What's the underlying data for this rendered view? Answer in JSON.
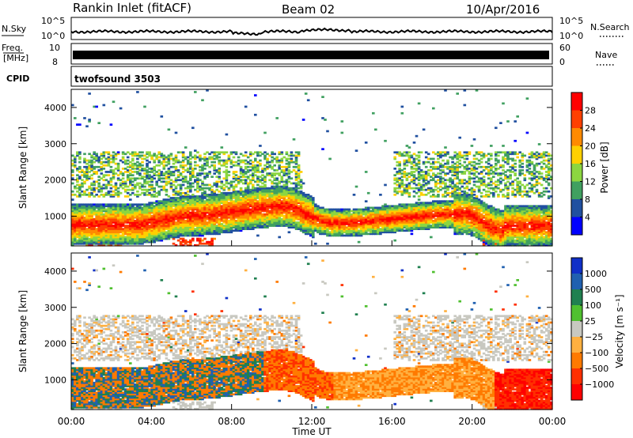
{
  "header": {
    "station": "Rankin Inlet (fitACF)",
    "beam": "Beam 02",
    "date": "10/Apr/2016"
  },
  "top_panels": {
    "nsky_label": "N.Sky",
    "nsky_ticks": [
      "10^5",
      "10^0"
    ],
    "nsearch_label": "N.Search",
    "nsearch_ticks": [
      "10^5",
      "10^0"
    ],
    "freq_label": "Freq.",
    "freq_unit": "[MHz]",
    "freq_ticks": [
      "10",
      "8"
    ],
    "nave_label": "Nave",
    "nave_ticks": [
      "60",
      "0"
    ],
    "cpid_label": "CPID",
    "cpid_value": "twofsound 3503"
  },
  "chart_data": [
    {
      "type": "heatmap",
      "name": "power",
      "xlabel": "Time UT",
      "ylabel": "Slant Range [km]",
      "xlim": [
        0,
        24
      ],
      "ylim": [
        180,
        4500
      ],
      "y_ticks": [
        1000,
        2000,
        3000,
        4000
      ],
      "colorbar_label": "Power [dB]",
      "colorbar_ticks": [
        "28",
        "24",
        "20",
        "16",
        "12",
        "8",
        "4"
      ],
      "colorbar_colors": [
        "#ff0000",
        "#ff4000",
        "#ff8a00",
        "#ffd000",
        "#8cd640",
        "#40a060",
        "#2050a0",
        "#0000ff"
      ]
    },
    {
      "type": "heatmap",
      "name": "velocity",
      "xlabel": "Time UT",
      "ylabel": "Slant Range [km]",
      "xlim": [
        0,
        24
      ],
      "ylim": [
        180,
        4500
      ],
      "y_ticks": [
        1000,
        2000,
        3000,
        4000
      ],
      "colorbar_label": "Velocity [m s⁻¹]",
      "colorbar_ticks": [
        "1000",
        "500",
        "100",
        "25",
        "−25",
        "−100",
        "−500",
        "−1000"
      ],
      "colorbar_colors": [
        "#1030c8",
        "#2060b0",
        "#208050",
        "#50c030",
        "#c8c8c0",
        "#ffb040",
        "#ff7a00",
        "#ff3000",
        "#ff0000"
      ]
    }
  ],
  "x_ticks": [
    "00:00",
    "04:00",
    "08:00",
    "12:00",
    "16:00",
    "20:00",
    "00:00"
  ]
}
